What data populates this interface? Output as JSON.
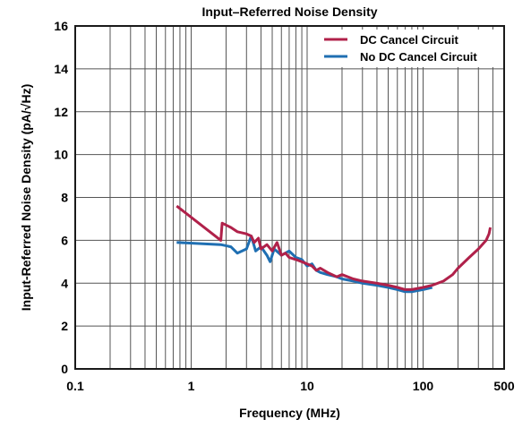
{
  "chart_data": {
    "type": "line",
    "title": "Input–Referred Noise Density",
    "xlabel": "Frequency (MHz)",
    "ylabel": "Input-Referred Noise Density (pA/√Hz)",
    "x_scale": "log",
    "xlim": [
      0.1,
      500
    ],
    "ylim": [
      0,
      16
    ],
    "x_tick_labels": [
      {
        "value": 0.1,
        "label": "0.1"
      },
      {
        "value": 1,
        "label": "1"
      },
      {
        "value": 10,
        "label": "10"
      },
      {
        "value": 100,
        "label": "100"
      },
      {
        "value": 500,
        "label": "500"
      }
    ],
    "y_ticks": [
      0,
      2,
      4,
      6,
      8,
      10,
      12,
      14,
      16
    ],
    "grid": true,
    "legend_position": "top-right",
    "series": [
      {
        "name": "DC Cancel Circuit",
        "color": "#b0214a",
        "x": [
          0.75,
          1.8,
          1.85,
          2.2,
          2.5,
          3.0,
          3.3,
          3.5,
          3.8,
          4.0,
          4.5,
          5.0,
          5.5,
          6.0,
          6.5,
          7.0,
          8.0,
          9.0,
          10.0,
          11,
          12,
          13,
          15,
          18,
          20,
          25,
          30,
          40,
          50,
          60,
          70,
          80,
          100,
          120,
          150,
          180,
          200,
          250,
          300,
          350,
          370,
          380
        ],
        "y": [
          7.6,
          6.0,
          6.8,
          6.6,
          6.4,
          6.3,
          6.2,
          5.9,
          6.1,
          5.6,
          5.8,
          5.5,
          5.9,
          5.3,
          5.4,
          5.2,
          5.1,
          5.0,
          4.9,
          4.8,
          4.6,
          4.7,
          4.5,
          4.3,
          4.4,
          4.2,
          4.1,
          4.0,
          3.9,
          3.8,
          3.7,
          3.7,
          3.8,
          3.9,
          4.1,
          4.4,
          4.7,
          5.2,
          5.6,
          6.0,
          6.3,
          6.6
        ]
      },
      {
        "name": "No DC Cancel Circuit",
        "color": "#1f6fb2",
        "x": [
          0.75,
          1.8,
          2.2,
          2.5,
          3.0,
          3.3,
          3.6,
          4.0,
          4.5,
          4.8,
          5.2,
          6.0,
          7.0,
          8.0,
          9.0,
          10.0,
          11,
          12,
          13,
          15,
          18,
          20,
          25,
          30,
          40,
          50,
          60,
          70,
          80,
          100,
          120
        ],
        "y": [
          5.9,
          5.8,
          5.7,
          5.4,
          5.6,
          6.2,
          5.5,
          5.7,
          5.3,
          5.0,
          5.6,
          5.3,
          5.5,
          5.2,
          5.1,
          4.8,
          4.9,
          4.6,
          4.5,
          4.4,
          4.3,
          4.2,
          4.1,
          4.0,
          3.9,
          3.8,
          3.7,
          3.6,
          3.6,
          3.7,
          3.8
        ]
      }
    ]
  }
}
